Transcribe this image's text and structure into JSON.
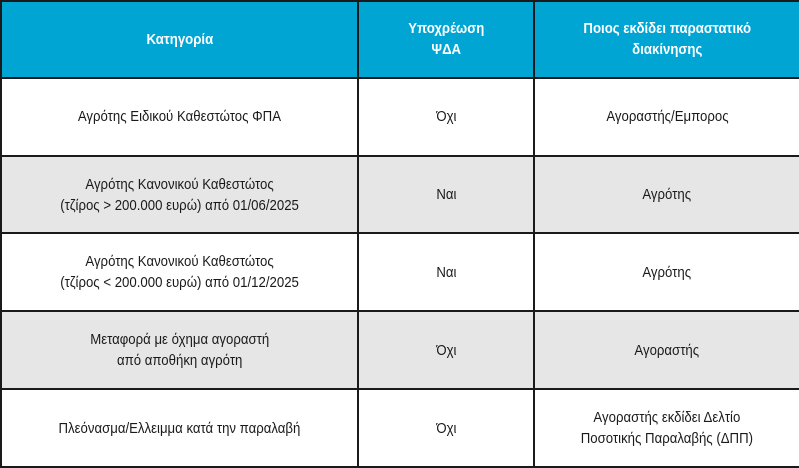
{
  "table": {
    "headers": [
      "Κατηγορία",
      "Υποχρέωση\nΨΔΑ",
      "Ποιος εκδίδει παραστατικό\nδιακίνησης"
    ],
    "header_color": "#00a5d4",
    "rows": [
      [
        "Αγρότης Ειδικού Καθεστώτος ΦΠΑ",
        "Όχι",
        "Αγοραστής/Εμπορος"
      ],
      [
        "Αγρότης Κανονικού Καθεστώτος\n(τζίρος > 200.000 ευρώ) από 01/06/2025",
        "Ναι",
        "Αγρότης"
      ],
      [
        "Αγρότης Κανονικού Καθεστώτος\n(τζίρος < 200.000 ευρώ) από 01/12/2025",
        "Ναι",
        "Αγρότης"
      ],
      [
        "Μεταφορά με όχημα αγοραστή\nαπό αποθήκη αγρότη",
        "Όχι",
        "Αγοραστής"
      ],
      [
        "Πλεόνασμα/Ελλειμμα κατά την παραλαβή",
        "Όχι",
        "Αγοραστής εκδίδει Δελτίο\nΠοσοτικής Παραλαβής (ΔΠΠ)"
      ]
    ]
  }
}
